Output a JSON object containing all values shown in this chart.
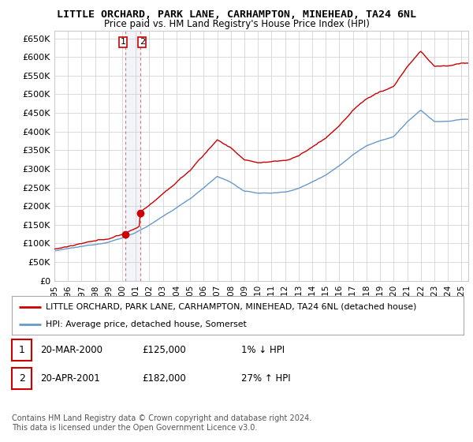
{
  "title": "LITTLE ORCHARD, PARK LANE, CARHAMPTON, MINEHEAD, TA24 6NL",
  "subtitle": "Price paid vs. HM Land Registry's House Price Index (HPI)",
  "xlim_start": 1995.0,
  "xlim_end": 2025.5,
  "ylim_min": 0,
  "ylim_max": 670000,
  "yticks": [
    0,
    50000,
    100000,
    150000,
    200000,
    250000,
    300000,
    350000,
    400000,
    450000,
    500000,
    550000,
    600000,
    650000
  ],
  "ytick_labels": [
    "£0",
    "£50K",
    "£100K",
    "£150K",
    "£200K",
    "£250K",
    "£300K",
    "£350K",
    "£400K",
    "£450K",
    "£500K",
    "£550K",
    "£600K",
    "£650K"
  ],
  "hpi_color": "#6699cc",
  "price_color": "#cc0000",
  "sale1_year": 2000.21,
  "sale1_price": 125000,
  "sale2_year": 2001.31,
  "sale2_price": 182000,
  "annotation1_label": "1",
  "annotation2_label": "2",
  "legend_line1": "LITTLE ORCHARD, PARK LANE, CARHAMPTON, MINEHEAD, TA24 6NL (detached house)",
  "legend_line2": "HPI: Average price, detached house, Somerset",
  "table_row1_num": "1",
  "table_row1_date": "20-MAR-2000",
  "table_row1_price": "£125,000",
  "table_row1_hpi": "1% ↓ HPI",
  "table_row2_num": "2",
  "table_row2_date": "20-APR-2001",
  "table_row2_price": "£182,000",
  "table_row2_hpi": "27% ↑ HPI",
  "footer": "Contains HM Land Registry data © Crown copyright and database right 2024.\nThis data is licensed under the Open Government Licence v3.0.",
  "bg_color": "#ffffff",
  "grid_color": "#cccccc",
  "xtick_years": [
    1995,
    1996,
    1997,
    1998,
    1999,
    2000,
    2001,
    2002,
    2003,
    2004,
    2005,
    2006,
    2007,
    2008,
    2009,
    2010,
    2011,
    2012,
    2013,
    2014,
    2015,
    2016,
    2017,
    2018,
    2019,
    2020,
    2021,
    2022,
    2023,
    2024,
    2025
  ],
  "hpi_anchors_years": [
    1995,
    1996,
    1997,
    1998,
    1999,
    2000,
    2001,
    2002,
    2003,
    2004,
    2005,
    2006,
    2007,
    2008,
    2009,
    2010,
    2011,
    2012,
    2013,
    2014,
    2015,
    2016,
    2017,
    2018,
    2019,
    2020,
    2021,
    2022,
    2023,
    2024,
    2025
  ],
  "hpi_anchors_vals": [
    80000,
    85000,
    90000,
    96000,
    104000,
    115000,
    130000,
    150000,
    172000,
    195000,
    220000,
    250000,
    280000,
    265000,
    240000,
    235000,
    235000,
    238000,
    248000,
    265000,
    285000,
    310000,
    340000,
    365000,
    380000,
    390000,
    430000,
    460000,
    430000,
    430000,
    435000
  ]
}
